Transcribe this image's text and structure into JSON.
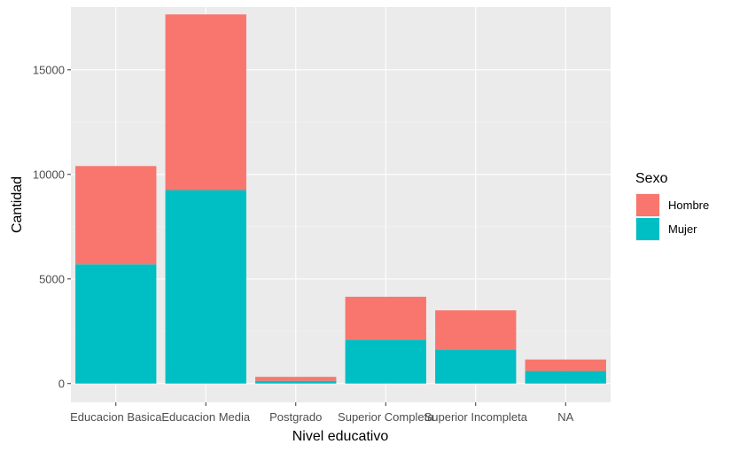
{
  "chart_data": {
    "type": "bar",
    "stacked": true,
    "xlabel": "Nivel educativo",
    "ylabel": "Cantidad",
    "categories": [
      "Educacion Basica",
      "Educacion Media",
      "Postgrado",
      "Superior Completa",
      "Superior Incompleta",
      "NA"
    ],
    "series": [
      {
        "name": "Hombre",
        "color": "#F8766D",
        "values": [
          4700,
          8400,
          190,
          2050,
          1900,
          550
        ]
      },
      {
        "name": "Mujer",
        "color": "#00BFC4",
        "values": [
          5700,
          9250,
          130,
          2100,
          1600,
          600
        ]
      }
    ],
    "stack_order_bottom_to_top": [
      "Mujer",
      "Hombre"
    ],
    "ylim": [
      -900,
      18000
    ],
    "yticks": [
      0,
      5000,
      10000,
      15000
    ],
    "ytick_labels": [
      "0",
      "5000",
      "10000",
      "15000"
    ],
    "grid": true,
    "legend": {
      "title": "Sexo",
      "placement": "right"
    }
  }
}
